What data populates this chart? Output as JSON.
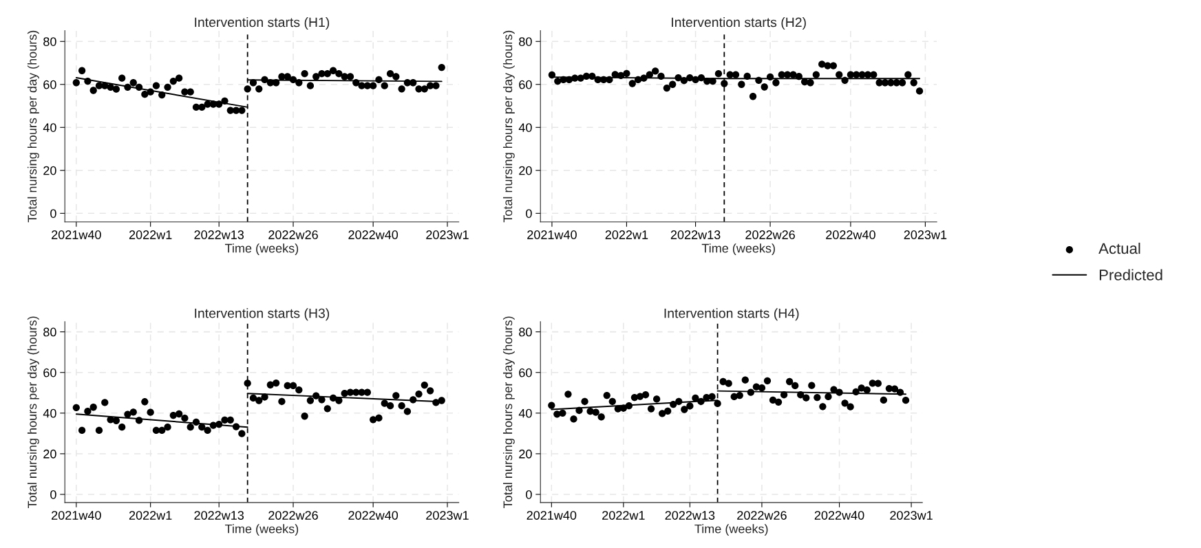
{
  "chart_data": [
    {
      "type": "scatter",
      "title": "Intervention starts (H1)",
      "xlabel": "Time (weeks)",
      "ylabel": "Total nursing hours per day (hours)",
      "categories": [
        "2021w40",
        null,
        null,
        null,
        null,
        null,
        null,
        null,
        null,
        null,
        null,
        null,
        null,
        "2022w1",
        null,
        null,
        null,
        null,
        null,
        null,
        null,
        null,
        null,
        null,
        null,
        "2022w13",
        null,
        null,
        null,
        null,
        null,
        null,
        null,
        null,
        null,
        null,
        null,
        null,
        "2022w26",
        null,
        null,
        null,
        null,
        null,
        null,
        null,
        null,
        null,
        null,
        null,
        null,
        null,
        "2022w40",
        null,
        null,
        null,
        null,
        null,
        null,
        null,
        null,
        null,
        null,
        null,
        null,
        "2023w1"
      ],
      "series": [
        {
          "color": "#000000",
          "marker": "circle",
          "values": [
            60.8,
            66.4,
            61.5,
            57.2,
            59.4,
            59.4,
            58.7,
            57.8,
            62.9,
            58.7,
            60.8,
            58.7,
            55.4,
            56.5,
            59.4,
            55.1,
            58.7,
            61.5,
            62.9,
            56.5,
            56.5,
            49.4,
            49.4,
            50.8,
            50.8,
            50.8,
            52.3,
            47.9,
            47.9,
            47.9,
            57.9,
            60.8,
            57.9,
            62.2,
            60.8,
            60.8,
            63.6,
            63.6,
            62.2,
            60.8,
            65.0,
            59.4,
            63.6,
            65.0,
            65.0,
            66.4,
            65.0,
            63.6,
            63.6,
            60.8,
            59.4,
            59.4,
            59.4,
            62.2,
            59.4,
            65.0,
            63.6,
            57.9,
            60.8,
            60.8,
            57.9,
            57.9,
            59.4,
            59.4,
            67.9,
            null
          ]
        },
        {
          "type": "line",
          "color": "#000000",
          "values": [
            63.1,
            null,
            null,
            null,
            null,
            null,
            null,
            null,
            null,
            null,
            null,
            null,
            null,
            null,
            null,
            null,
            null,
            null,
            null,
            null,
            null,
            null,
            null,
            null,
            null,
            null,
            null,
            null,
            null,
            null,
            49.4,
            null,
            null,
            null,
            null,
            null,
            null,
            null,
            null,
            null,
            null,
            null,
            null,
            null,
            null,
            null,
            null,
            null,
            null,
            null,
            null,
            null,
            null,
            null,
            null,
            null,
            null,
            null,
            null,
            null,
            null,
            null,
            null,
            null,
            null,
            null
          ]
        },
        {
          "type": "line",
          "color": "#000000",
          "values": [
            null,
            null,
            null,
            null,
            null,
            null,
            null,
            null,
            null,
            null,
            null,
            null,
            null,
            null,
            null,
            null,
            null,
            null,
            null,
            null,
            null,
            null,
            null,
            null,
            null,
            null,
            null,
            null,
            null,
            null,
            62.1,
            null,
            null,
            null,
            null,
            null,
            null,
            null,
            null,
            null,
            null,
            null,
            null,
            null,
            null,
            null,
            null,
            null,
            null,
            null,
            null,
            null,
            null,
            null,
            null,
            null,
            null,
            null,
            null,
            null,
            null,
            null,
            null,
            null,
            61.4,
            null
          ]
        }
      ],
      "ylim": [
        -4,
        85
      ],
      "yticks": [
        0,
        20,
        40,
        60,
        80
      ],
      "grid": true
    },
    {
      "type": "scatter",
      "title": "Intervention starts (H2)",
      "xlabel": "Time (weeks)",
      "ylabel": "Total nursing hours per day (hours)",
      "categories": [
        "2021w40",
        null,
        null,
        null,
        null,
        null,
        null,
        null,
        null,
        null,
        null,
        null,
        null,
        "2022w1",
        null,
        null,
        null,
        null,
        null,
        null,
        null,
        null,
        null,
        null,
        null,
        "2022w13",
        null,
        null,
        null,
        null,
        null,
        null,
        null,
        null,
        null,
        null,
        null,
        null,
        "2022w26",
        null,
        null,
        null,
        null,
        null,
        null,
        null,
        null,
        null,
        null,
        null,
        null,
        null,
        "2022w40",
        null,
        null,
        null,
        null,
        null,
        null,
        null,
        null,
        null,
        null,
        null,
        null,
        "2023w1"
      ],
      "series": [
        {
          "name": "Actual",
          "color": "#000000",
          "marker": "circle",
          "values": [
            64.4,
            61.5,
            62.2,
            62.2,
            62.9,
            62.9,
            63.8,
            63.8,
            62.2,
            62.2,
            62.2,
            64.6,
            64.1,
            65.1,
            60.4,
            62.2,
            62.9,
            64.5,
            66.2,
            63.8,
            58.3,
            60.0,
            63.1,
            61.8,
            63.1,
            62.2,
            63.1,
            61.5,
            61.5,
            65.0,
            60.4,
            64.5,
            64.5,
            60.0,
            63.8,
            54.4,
            61.9,
            58.8,
            63.5,
            60.8,
            64.5,
            64.5,
            64.5,
            63.7,
            61.2,
            60.8,
            64.5,
            69.4,
            68.7,
            68.7,
            64.5,
            61.9,
            64.5,
            64.5,
            64.5,
            64.5,
            64.5,
            60.8,
            60.8,
            60.8,
            60.8,
            60.8,
            64.5,
            60.8,
            56.9,
            null
          ]
        },
        {
          "type": "line",
          "name": "Predicted",
          "color": "#000000",
          "values": [
            63.4,
            null,
            null,
            null,
            null,
            null,
            null,
            null,
            null,
            null,
            null,
            null,
            null,
            null,
            null,
            null,
            null,
            null,
            null,
            null,
            null,
            null,
            null,
            null,
            null,
            null,
            null,
            null,
            null,
            null,
            62.7,
            null,
            null,
            null,
            null,
            null,
            null,
            null,
            null,
            null,
            null,
            null,
            null,
            null,
            null,
            null,
            null,
            null,
            null,
            null,
            null,
            null,
            null,
            null,
            null,
            null,
            null,
            null,
            null,
            null,
            null,
            null,
            null,
            null,
            62.7,
            null
          ]
        }
      ],
      "ylim": [
        -4,
        85
      ],
      "yticks": [
        0,
        20,
        40,
        60,
        80
      ],
      "grid": true,
      "legend": "right"
    },
    {
      "type": "scatter",
      "title": "Intervention starts (H3)",
      "xlabel": "Time (weeks)",
      "ylabel": "Total nursing hours per day (hours)",
      "categories": [
        "2021w40",
        null,
        null,
        null,
        null,
        null,
        null,
        null,
        null,
        null,
        null,
        null,
        null,
        "2022w1",
        null,
        null,
        null,
        null,
        null,
        null,
        null,
        null,
        null,
        null,
        null,
        "2022w13",
        null,
        null,
        null,
        null,
        null,
        null,
        null,
        null,
        null,
        null,
        null,
        null,
        "2022w26",
        null,
        null,
        null,
        null,
        null,
        null,
        null,
        null,
        null,
        null,
        null,
        null,
        null,
        "2022w40",
        null,
        null,
        null,
        null,
        null,
        null,
        null,
        null,
        null,
        null,
        null,
        null,
        "2023w1"
      ],
      "series": [
        {
          "color": "#000000",
          "marker": "circle",
          "values": [
            42.7,
            31.5,
            40.9,
            42.9,
            31.5,
            45.2,
            36.8,
            36.3,
            33.1,
            39.4,
            40.5,
            36.4,
            45.6,
            40.4,
            31.5,
            31.5,
            33.1,
            38.9,
            39.6,
            37.5,
            33.1,
            35.6,
            33.1,
            31.5,
            34.0,
            34.5,
            36.6,
            36.6,
            33.3,
            29.9,
            54.7,
            47.4,
            46.2,
            47.9,
            53.9,
            54.8,
            45.7,
            53.5,
            53.5,
            51.4,
            38.5,
            46.2,
            48.5,
            46.6,
            42.2,
            47.4,
            46.2,
            49.7,
            50.2,
            50.2,
            50.2,
            50.2,
            36.8,
            37.6,
            44.8,
            43.6,
            48.6,
            43.6,
            40.8,
            46.6,
            49.4,
            53.8,
            51.0,
            45.2,
            46.2,
            null
          ]
        },
        {
          "type": "line",
          "color": "#000000",
          "values": [
            39.5,
            null,
            null,
            null,
            null,
            null,
            null,
            null,
            null,
            null,
            null,
            null,
            null,
            null,
            null,
            null,
            null,
            null,
            null,
            null,
            null,
            null,
            null,
            null,
            null,
            null,
            null,
            null,
            null,
            null,
            33.1,
            null,
            null,
            null,
            null,
            null,
            null,
            null,
            null,
            null,
            null,
            null,
            null,
            null,
            null,
            null,
            null,
            null,
            null,
            null,
            null,
            null,
            null,
            null,
            null,
            null,
            null,
            null,
            null,
            null,
            null,
            null,
            null,
            null,
            null,
            null
          ]
        },
        {
          "type": "line",
          "color": "#000000",
          "values": [
            null,
            null,
            null,
            null,
            null,
            null,
            null,
            null,
            null,
            null,
            null,
            null,
            null,
            null,
            null,
            null,
            null,
            null,
            null,
            null,
            null,
            null,
            null,
            null,
            null,
            null,
            null,
            null,
            null,
            null,
            49.7,
            null,
            null,
            null,
            null,
            null,
            null,
            null,
            null,
            null,
            null,
            null,
            null,
            null,
            null,
            null,
            null,
            null,
            null,
            null,
            null,
            null,
            null,
            null,
            null,
            null,
            null,
            null,
            null,
            null,
            null,
            null,
            null,
            null,
            45.6,
            null
          ]
        }
      ],
      "ylim": [
        -4,
        85
      ],
      "yticks": [
        0,
        20,
        40,
        60,
        80
      ],
      "grid": true
    },
    {
      "type": "scatter",
      "title": "Intervention starts (H4)",
      "xlabel": "Time (weeks)",
      "ylabel": "Total nursing hours per day (hours)",
      "categories": [
        "2021w40",
        null,
        null,
        null,
        null,
        null,
        null,
        null,
        null,
        null,
        null,
        null,
        null,
        "2022w1",
        null,
        null,
        null,
        null,
        null,
        null,
        null,
        null,
        null,
        null,
        null,
        "2022w13",
        null,
        null,
        null,
        null,
        null,
        null,
        null,
        null,
        null,
        null,
        null,
        null,
        "2022w26",
        null,
        null,
        null,
        null,
        null,
        null,
        null,
        null,
        null,
        null,
        null,
        null,
        null,
        "2022w40",
        null,
        null,
        null,
        null,
        null,
        null,
        null,
        null,
        null,
        null,
        null,
        null,
        "2023w1"
      ],
      "series": [
        {
          "color": "#000000",
          "marker": "circle",
          "values": [
            43.8,
            39.5,
            40.0,
            49.3,
            37.1,
            41.3,
            45.7,
            40.9,
            40.4,
            38.1,
            48.7,
            45.7,
            42.1,
            42.4,
            43.6,
            47.7,
            48.2,
            49.0,
            42.1,
            46.9,
            39.8,
            41.0,
            44.3,
            45.7,
            41.8,
            43.5,
            47.4,
            45.7,
            47.7,
            48.1,
            44.7,
            55.5,
            54.6,
            48.1,
            48.7,
            56.3,
            50.2,
            52.9,
            52.4,
            55.9,
            46.4,
            45.4,
            49.0,
            55.5,
            53.5,
            49.0,
            47.5,
            53.6,
            47.7,
            43.2,
            48.1,
            51.6,
            50.2,
            44.9,
            43.1,
            50.5,
            52.3,
            51.4,
            54.7,
            54.6,
            46.4,
            52.1,
            51.9,
            50.2,
            46.3,
            null
          ]
        },
        {
          "type": "line",
          "color": "#000000",
          "values": [
            41.8,
            null,
            null,
            null,
            null,
            null,
            null,
            null,
            null,
            null,
            null,
            null,
            null,
            null,
            null,
            null,
            null,
            null,
            null,
            null,
            null,
            null,
            null,
            null,
            null,
            null,
            null,
            null,
            null,
            null,
            46.3,
            null,
            null,
            null,
            null,
            null,
            null,
            null,
            null,
            null,
            null,
            null,
            null,
            null,
            null,
            null,
            null,
            null,
            null,
            null,
            null,
            null,
            null,
            null,
            null,
            null,
            null,
            null,
            null,
            null,
            null,
            null,
            null,
            null,
            null,
            null
          ]
        },
        {
          "type": "line",
          "color": "#000000",
          "values": [
            null,
            null,
            null,
            null,
            null,
            null,
            null,
            null,
            null,
            null,
            null,
            null,
            null,
            null,
            null,
            null,
            null,
            null,
            null,
            null,
            null,
            null,
            null,
            null,
            null,
            null,
            null,
            null,
            null,
            null,
            50.9,
            null,
            null,
            null,
            null,
            null,
            null,
            null,
            null,
            null,
            null,
            null,
            null,
            null,
            null,
            null,
            null,
            null,
            null,
            null,
            null,
            null,
            null,
            null,
            null,
            null,
            null,
            null,
            null,
            null,
            null,
            null,
            null,
            null,
            49.3,
            null
          ]
        }
      ],
      "ylim": [
        -4,
        85
      ],
      "yticks": [
        0,
        20,
        40,
        60,
        80
      ],
      "grid": true
    }
  ]
}
